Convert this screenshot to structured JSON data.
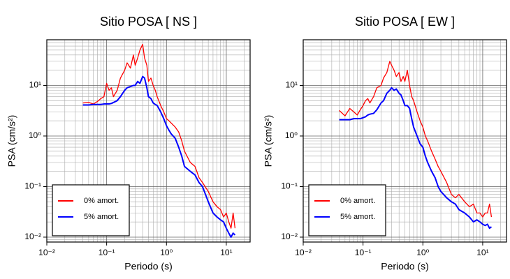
{
  "chart_data": [
    {
      "type": "line",
      "title": "Sitio POSA [ NS ]",
      "xlabel": "Periodo (s)",
      "ylabel": "PSA (cm/s²)",
      "log_x": true,
      "log_y": true,
      "grid": true,
      "legend": "lower left",
      "xlim": [
        0.01,
        25
      ],
      "ylim": [
        0.008,
        80
      ],
      "xticks": [
        {
          "value": 0.01,
          "label": "10⁻²"
        },
        {
          "value": 0.1,
          "label": "10⁻¹"
        },
        {
          "value": 1,
          "label": "10⁰"
        },
        {
          "value": 10,
          "label": "10¹"
        }
      ],
      "yticks": [
        {
          "value": 0.01,
          "label": "10⁻²"
        },
        {
          "value": 0.1,
          "label": "10⁻¹"
        },
        {
          "value": 1,
          "label": "10⁰"
        },
        {
          "value": 10,
          "label": "10¹"
        }
      ],
      "xminorticks": [
        0.02,
        0.03,
        0.04,
        0.05,
        0.06,
        0.07,
        0.08,
        0.09,
        0.2,
        0.3,
        0.4,
        0.5,
        0.6,
        0.7,
        0.8,
        0.9,
        2,
        3,
        4,
        5,
        6,
        7,
        8,
        9,
        20
      ],
      "yminorticks": [
        0.009,
        0.02,
        0.03,
        0.04,
        0.05,
        0.06,
        0.07,
        0.08,
        0.09,
        0.2,
        0.3,
        0.4,
        0.5,
        0.6,
        0.7,
        0.8,
        0.9,
        2,
        3,
        4,
        5,
        6,
        7,
        8,
        9,
        20,
        30,
        40,
        50,
        60,
        70,
        80
      ],
      "x": [
        0.04,
        0.05,
        0.06,
        0.07,
        0.08,
        0.09,
        0.1,
        0.11,
        0.12,
        0.13,
        0.15,
        0.17,
        0.2,
        0.22,
        0.25,
        0.28,
        0.3,
        0.33,
        0.36,
        0.4,
        0.43,
        0.47,
        0.5,
        0.55,
        0.6,
        0.65,
        0.7,
        0.8,
        0.9,
        1.0,
        1.1,
        1.2,
        1.4,
        1.6,
        1.8,
        2.0,
        2.5,
        3,
        3.5,
        4,
        5,
        6,
        7,
        8,
        9,
        10,
        11,
        12,
        13,
        14
      ],
      "series": [
        {
          "name": "0% amort.",
          "color": "#ff0000",
          "values": [
            4.5,
            4.6,
            4.3,
            4.8,
            5.5,
            6,
            11,
            8,
            9,
            6,
            8,
            14,
            20,
            28,
            22,
            40,
            25,
            35,
            50,
            65,
            35,
            25,
            12,
            14,
            10,
            8,
            6,
            4,
            3,
            2.2,
            2.0,
            1.8,
            1.5,
            1.2,
            0.8,
            0.5,
            0.3,
            0.25,
            0.15,
            0.12,
            0.08,
            0.05,
            0.04,
            0.035,
            0.025,
            0.03,
            0.02,
            0.015,
            0.03,
            0.015
          ]
        },
        {
          "name": "5% amort.",
          "color": "#0000ff",
          "values": [
            4.1,
            4.1,
            4.2,
            4.2,
            4.2,
            4.3,
            4.3,
            4.3,
            4.4,
            4.6,
            5,
            6,
            8,
            9,
            9.5,
            10,
            10,
            12,
            11,
            15,
            14,
            9,
            6,
            5.5,
            4.5,
            4.2,
            4,
            3,
            2.2,
            1.6,
            1.3,
            1.1,
            0.9,
            0.6,
            0.4,
            0.25,
            0.2,
            0.17,
            0.12,
            0.1,
            0.05,
            0.03,
            0.025,
            0.022,
            0.02,
            0.015,
            0.012,
            0.01,
            0.012,
            0.011
          ]
        }
      ]
    },
    {
      "type": "line",
      "title": "Sitio POSA [ EW ]",
      "xlabel": "Periodo (s)",
      "ylabel": "PSA (cm/s²)",
      "log_x": true,
      "log_y": true,
      "grid": true,
      "legend": "lower left",
      "xlim": [
        0.01,
        25
      ],
      "ylim": [
        0.008,
        80
      ],
      "xticks": [
        {
          "value": 0.01,
          "label": "10⁻²"
        },
        {
          "value": 0.1,
          "label": "10⁻¹"
        },
        {
          "value": 1,
          "label": "10⁰"
        },
        {
          "value": 10,
          "label": "10¹"
        }
      ],
      "yticks": [
        {
          "value": 0.01,
          "label": "10⁻²"
        },
        {
          "value": 0.1,
          "label": "10⁻¹"
        },
        {
          "value": 1,
          "label": "10⁰"
        },
        {
          "value": 10,
          "label": "10¹"
        }
      ],
      "xminorticks": [
        0.02,
        0.03,
        0.04,
        0.05,
        0.06,
        0.07,
        0.08,
        0.09,
        0.2,
        0.3,
        0.4,
        0.5,
        0.6,
        0.7,
        0.8,
        0.9,
        2,
        3,
        4,
        5,
        6,
        7,
        8,
        9,
        20
      ],
      "yminorticks": [
        0.009,
        0.02,
        0.03,
        0.04,
        0.05,
        0.06,
        0.07,
        0.08,
        0.09,
        0.2,
        0.3,
        0.4,
        0.5,
        0.6,
        0.7,
        0.8,
        0.9,
        2,
        3,
        4,
        5,
        6,
        7,
        8,
        9,
        20,
        30,
        40,
        50,
        60,
        70,
        80
      ],
      "x": [
        0.04,
        0.05,
        0.06,
        0.07,
        0.08,
        0.09,
        0.1,
        0.11,
        0.12,
        0.13,
        0.15,
        0.17,
        0.2,
        0.22,
        0.25,
        0.28,
        0.3,
        0.33,
        0.36,
        0.4,
        0.43,
        0.47,
        0.5,
        0.55,
        0.6,
        0.65,
        0.7,
        0.8,
        0.9,
        1.0,
        1.1,
        1.2,
        1.4,
        1.6,
        1.8,
        2.0,
        2.5,
        3,
        3.5,
        4,
        5,
        6,
        7,
        8,
        9,
        10,
        11,
        12,
        13,
        14
      ],
      "series": [
        {
          "name": "0% amort.",
          "color": "#ff0000",
          "values": [
            3.2,
            2.5,
            3.5,
            3,
            2.6,
            3.3,
            4,
            5,
            5.5,
            4.5,
            6,
            9,
            10,
            14,
            18,
            30,
            25,
            20,
            15,
            18,
            12,
            15,
            12,
            20,
            10,
            6,
            5,
            3,
            2,
            1.5,
            1.0,
            0.8,
            0.5,
            0.35,
            0.25,
            0.2,
            0.12,
            0.07,
            0.06,
            0.07,
            0.05,
            0.04,
            0.045,
            0.03,
            0.03,
            0.025,
            0.03,
            0.03,
            0.045,
            0.025
          ]
        },
        {
          "name": "5% amort.",
          "color": "#0000ff",
          "values": [
            2.1,
            2.1,
            2.1,
            2.2,
            2.2,
            2.2,
            2.3,
            2.4,
            2.6,
            2.7,
            2.8,
            3.3,
            4.5,
            5,
            7,
            8,
            9,
            8,
            8.5,
            7,
            6.5,
            5,
            4,
            4,
            3.5,
            2.2,
            1.5,
            1.0,
            0.7,
            0.6,
            0.4,
            0.3,
            0.2,
            0.15,
            0.1,
            0.08,
            0.06,
            0.05,
            0.045,
            0.035,
            0.03,
            0.025,
            0.02,
            0.022,
            0.02,
            0.018,
            0.017,
            0.018,
            0.015,
            0.016
          ]
        }
      ]
    }
  ]
}
